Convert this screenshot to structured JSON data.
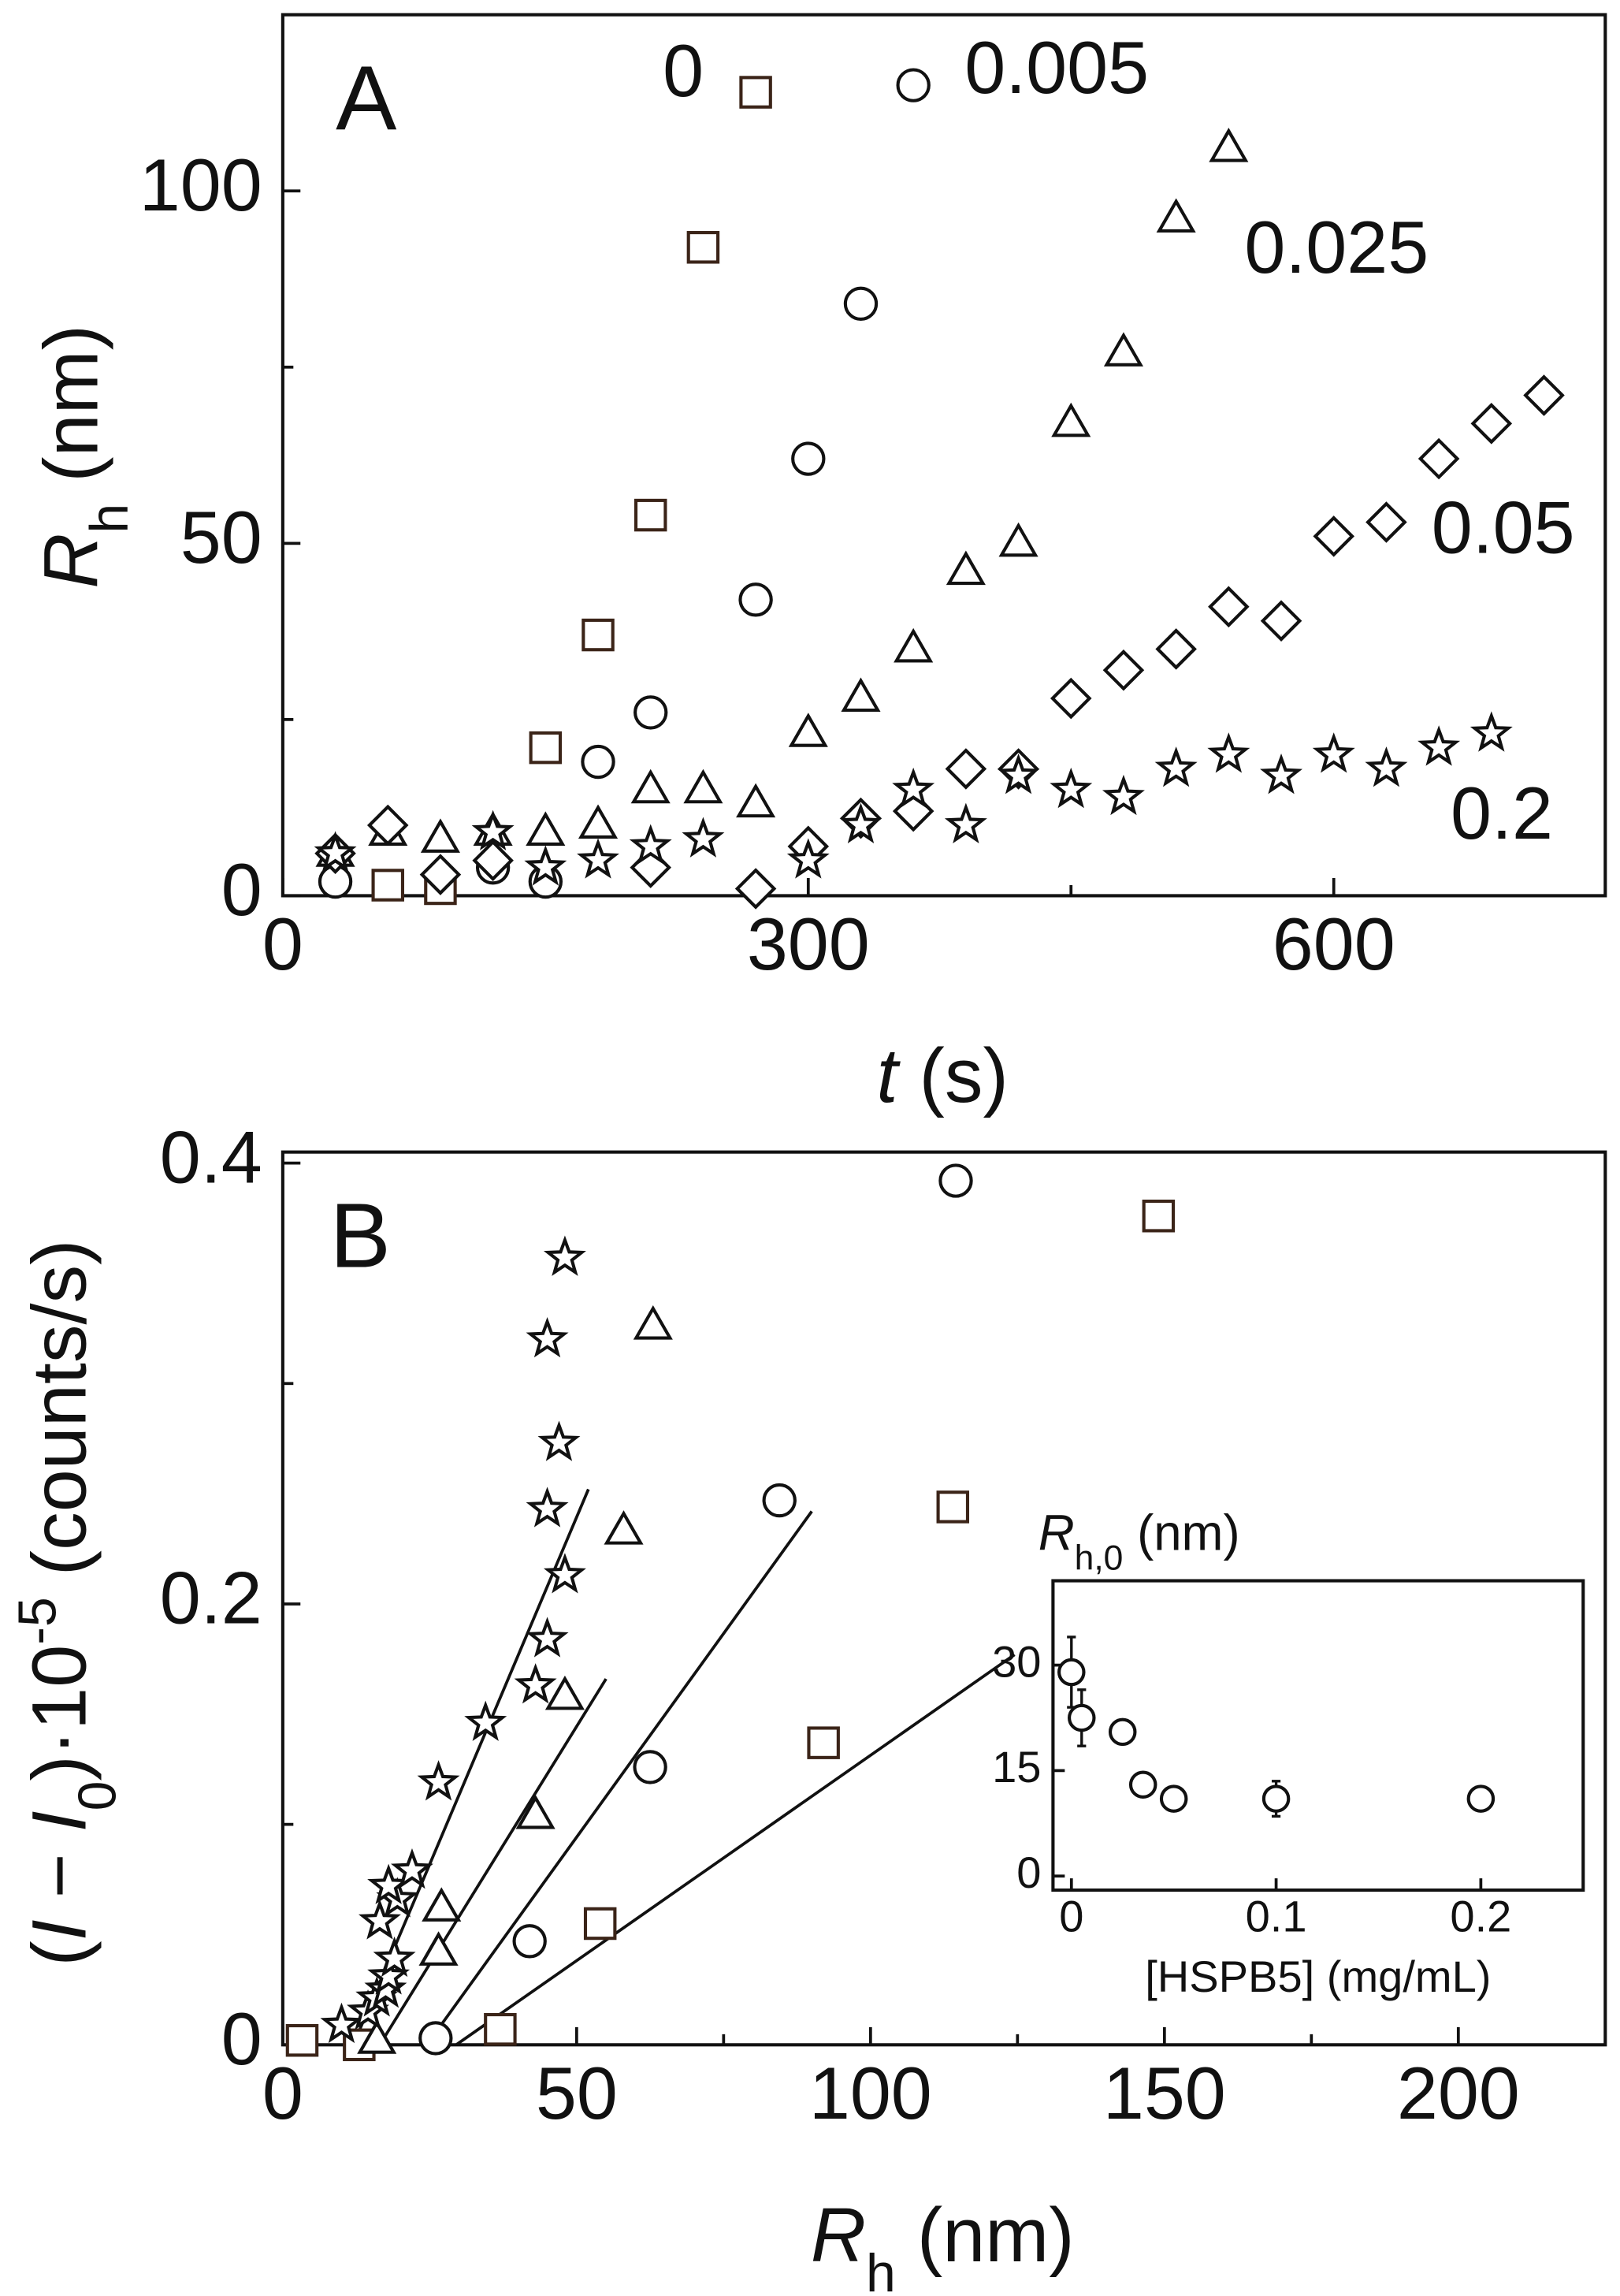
{
  "chart_data": [
    {
      "type": "scatter",
      "panel": "A",
      "xlabel": [
        {
          "text": "t",
          "style": "italic"
        },
        {
          "text": " (s)",
          "style": "normal"
        }
      ],
      "ylabel": [
        {
          "text": "R",
          "style": "italic"
        },
        {
          "text": "h",
          "style": "sub"
        },
        {
          "text": " (nm)",
          "style": "normal"
        }
      ],
      "xlim": [
        0,
        755
      ],
      "ylim": [
        0,
        125
      ],
      "xticks": [
        0,
        300,
        600
      ],
      "yticks": [
        0,
        50,
        100
      ],
      "xminor": [
        150,
        450
      ],
      "yminor": [
        25,
        75
      ],
      "series": [
        {
          "name": "0",
          "marker": "square",
          "color": "#3b2418",
          "x": [
            60,
            90,
            150,
            180,
            210,
            240,
            270
          ],
          "values": [
            1.5,
            1,
            21,
            37,
            54,
            92,
            114
          ]
        },
        {
          "name": "0.005",
          "marker": "circle",
          "color": "#111111",
          "x": [
            30,
            120,
            150,
            180,
            210,
            270,
            300,
            330,
            360
          ],
          "values": [
            2,
            4,
            2,
            19,
            26,
            42,
            62,
            84,
            115
          ]
        },
        {
          "name": "0.025",
          "marker": "triangle",
          "color": "#111111",
          "x": [
            30,
            60,
            90,
            120,
            150,
            180,
            210,
            240,
            270,
            300,
            330,
            360,
            390,
            420,
            450,
            480,
            510,
            540
          ],
          "values": [
            6,
            9,
            8,
            9,
            9,
            10,
            15,
            15,
            13,
            23,
            28,
            35,
            46,
            50,
            67,
            77,
            96,
            106
          ]
        },
        {
          "name": "0.05",
          "marker": "diamond",
          "color": "#111111",
          "x": [
            30,
            60,
            90,
            120,
            210,
            270,
            300,
            330,
            360,
            390,
            420,
            450,
            480,
            510,
            540,
            570,
            600,
            630,
            660,
            690,
            720
          ],
          "values": [
            6,
            10,
            3,
            5,
            4,
            1,
            7,
            11,
            12,
            18,
            18,
            28,
            32,
            35,
            41,
            39,
            51,
            53,
            62,
            67,
            71
          ]
        },
        {
          "name": "0.2",
          "marker": "star",
          "color": "#111111",
          "x": [
            30,
            120,
            150,
            180,
            210,
            240,
            300,
            330,
            360,
            390,
            420,
            450,
            480,
            510,
            540,
            570,
            600,
            630,
            660,
            690
          ],
          "values": [
            6,
            9,
            4,
            5,
            7,
            8,
            5,
            10,
            15,
            10,
            17,
            15,
            14,
            18,
            20,
            17,
            20,
            18,
            21,
            23
          ]
        }
      ]
    },
    {
      "type": "scatter",
      "panel": "B",
      "xlabel": [
        {
          "text": "R",
          "style": "italic"
        },
        {
          "text": "h",
          "style": "sub"
        },
        {
          "text": " (nm)",
          "style": "normal"
        }
      ],
      "ylabel": [
        {
          "text": "(",
          "style": "normal"
        },
        {
          "text": "I",
          "style": "italic"
        },
        {
          "text": " − ",
          "style": "normal"
        },
        {
          "text": "I",
          "style": "italic"
        },
        {
          "text": "0",
          "style": "sub"
        },
        {
          "text": ")·10",
          "style": "normal"
        },
        {
          "text": "-5",
          "style": "sup"
        },
        {
          "text": " (counts/s)",
          "style": "normal"
        }
      ],
      "xlim": [
        0,
        225
      ],
      "ylim": [
        0,
        0.405
      ],
      "xticks": [
        0,
        50,
        100,
        150,
        200
      ],
      "yticks": [
        0,
        0.2,
        0.4
      ],
      "xminor": [
        25,
        75,
        125,
        175
      ],
      "yminor": [
        0.1,
        0.3
      ],
      "series": [
        {
          "marker": "square",
          "color": "#3b2418",
          "x": [
            3.3,
            13,
            37,
            54,
            92,
            114,
            149
          ],
          "values": [
            0.002,
            0,
            0.007,
            0.055,
            0.137,
            0.244,
            0.376
          ]
        },
        {
          "marker": "circle",
          "color": "#111111",
          "x": [
            26,
            42,
            62.5,
            84.5,
            114.5
          ],
          "values": [
            0.003,
            0.047,
            0.126,
            0.247,
            0.392
          ]
        },
        {
          "marker": "triangle",
          "color": "#111111",
          "x": [
            16,
            26.5,
            27,
            43,
            48,
            58,
            63
          ],
          "values": [
            0.002,
            0.042,
            0.062,
            0.104,
            0.158,
            0.233,
            0.326
          ]
        },
        {
          "marker": "star",
          "color": "#111111",
          "x": [
            10,
            14.5,
            16,
            17.5,
            18,
            19,
            16.5,
            19.5,
            18,
            22,
            26.5,
            34.5,
            43,
            45,
            48,
            45,
            47,
            45,
            48
          ],
          "values": [
            0.009,
            0.015,
            0.021,
            0.025,
            0.031,
            0.039,
            0.056,
            0.066,
            0.072,
            0.079,
            0.119,
            0.146,
            0.163,
            0.184,
            0.213,
            0.243,
            0.273,
            0.32,
            0.357
          ]
        }
      ],
      "fits": [
        {
          "x": [
            12,
            52
          ],
          "y": [
            0,
            0.252
          ]
        },
        {
          "x": [
            16.5,
            55
          ],
          "y": [
            0,
            0.166
          ]
        },
        {
          "x": [
            24.5,
            90
          ],
          "y": [
            0,
            0.242
          ]
        },
        {
          "x": [
            29.5,
            124.5
          ],
          "y": [
            0,
            0.177
          ]
        }
      ]
    },
    {
      "type": "errorbar",
      "inset": true,
      "title": [
        {
          "text": "R",
          "style": "italic"
        },
        {
          "text": "h,0",
          "style": "sub"
        },
        {
          "text": " (nm)",
          "style": "normal"
        }
      ],
      "xlabel": [
        {
          "text": "[HSPB5] (mg/mL)",
          "style": "normal"
        }
      ],
      "xlim": [
        -0.009,
        0.25
      ],
      "ylim": [
        -2,
        42
      ],
      "xticks": [
        0,
        0.1,
        0.2
      ],
      "yticks": [
        0,
        15,
        30
      ],
      "series": [
        {
          "marker": "circle",
          "color": "#111111",
          "x": [
            0,
            0.005,
            0.025,
            0.035,
            0.05,
            0.1,
            0.2
          ],
          "values": [
            29,
            22.5,
            20.5,
            13,
            11,
            11,
            11
          ],
          "errors": [
            5,
            4,
            1.5,
            1.5,
            1.5,
            2.5,
            1
          ]
        }
      ]
    }
  ]
}
